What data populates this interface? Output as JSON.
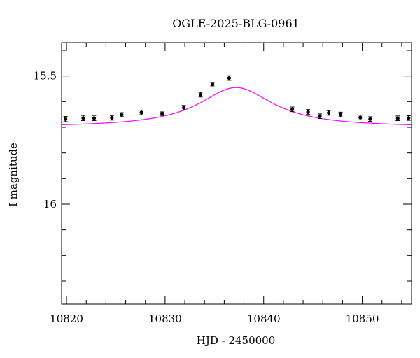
{
  "chart_data": {
    "type": "scatter",
    "title": "OGLE-2025-BLG-0961",
    "xlabel": "HJD - 2450000",
    "ylabel": "I magnitude",
    "xlim": [
      10819.5,
      10855
    ],
    "ylim": [
      16.39,
      15.37
    ],
    "y_inverted": true,
    "x_major_ticks": [
      10820,
      10830,
      10840,
      10850
    ],
    "x_tick_labels": [
      "10820",
      "10830",
      "10840",
      "10850"
    ],
    "y_major_ticks": [
      15.5,
      16
    ],
    "y_tick_labels": [
      "15.5",
      "16"
    ],
    "grid": false,
    "colors": {
      "points": "#000000",
      "model": "#ff00ff",
      "frame": "#000000"
    },
    "series": [
      {
        "type": "scatter",
        "x": [
          10819.9,
          10821.7,
          10822.8,
          10824.6,
          10825.6,
          10827.6,
          10829.7,
          10831.9,
          10833.6,
          10834.8,
          10836.5,
          10842.9,
          10844.5,
          10845.7,
          10846.6,
          10847.8,
          10849.8,
          10850.8,
          10853.6,
          10854.7
        ],
        "y": [
          15.668,
          15.664,
          15.664,
          15.663,
          15.651,
          15.642,
          15.647,
          15.624,
          15.573,
          15.532,
          15.508,
          15.63,
          15.64,
          15.657,
          15.644,
          15.65,
          15.662,
          15.668,
          15.665,
          15.664
        ],
        "err": [
          0.01,
          0.01,
          0.01,
          0.009,
          0.008,
          0.009,
          0.007,
          0.009,
          0.009,
          0.007,
          0.009,
          0.009,
          0.009,
          0.009,
          0.009,
          0.009,
          0.009,
          0.009,
          0.009,
          0.009
        ]
      },
      {
        "type": "line",
        "model": {
          "baseline": 15.7,
          "peak_time": 10837.2,
          "peak": 15.545,
          "timescale": 4.6
        }
      }
    ]
  }
}
